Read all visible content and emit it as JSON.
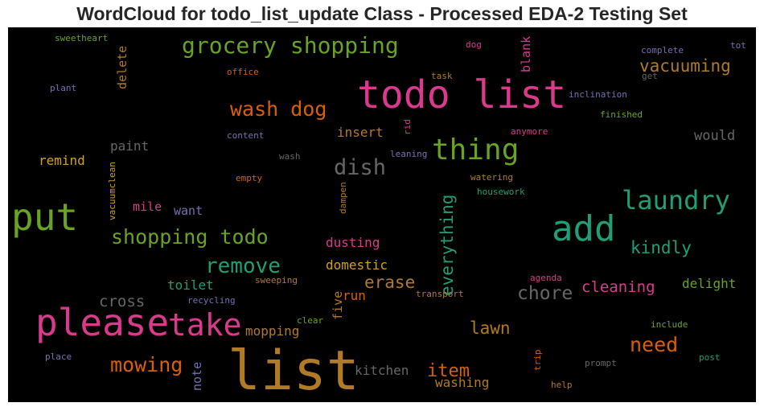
{
  "title": "WordCloud for todo_list_update Class - Processed EDA-2 Testing Set",
  "words": [
    {
      "text": "list",
      "color": "#b07a26"
    },
    {
      "text": "todo list",
      "color": "#d93a8c"
    },
    {
      "text": "please",
      "color": "#d93a8c"
    },
    {
      "text": "add",
      "color": "#1f9e77"
    },
    {
      "text": "put",
      "color": "#69a324"
    },
    {
      "text": "take",
      "color": "#d93a8c"
    },
    {
      "text": "thing",
      "color": "#69a324"
    },
    {
      "text": "laundry",
      "color": "#1f9e77"
    },
    {
      "text": "grocery shopping",
      "color": "#69a324"
    },
    {
      "text": "shopping todo",
      "color": "#69a324"
    },
    {
      "text": "remove",
      "color": "#1f9e77"
    },
    {
      "text": "wash dog",
      "color": "#d95f02"
    },
    {
      "text": "dish",
      "color": "#666666"
    },
    {
      "text": "mowing",
      "color": "#d95f02"
    },
    {
      "text": "need",
      "color": "#d95f02"
    },
    {
      "text": "vacuuming",
      "color": "#b07a26"
    },
    {
      "text": "chore",
      "color": "#666666"
    },
    {
      "text": "erase",
      "color": "#b07a26"
    },
    {
      "text": "item",
      "color": "#d95f02"
    },
    {
      "text": "everything",
      "color": "#1f9e77"
    },
    {
      "text": "lawn",
      "color": "#b07a26"
    },
    {
      "text": "kindly",
      "color": "#1f9e77"
    },
    {
      "text": "cleaning",
      "color": "#d93a8c"
    },
    {
      "text": "cross",
      "color": "#666666"
    },
    {
      "text": "paint",
      "color": "#666666"
    },
    {
      "text": "remind",
      "color": "#d4a017"
    },
    {
      "text": "insert",
      "color": "#b07a26"
    },
    {
      "text": "would",
      "color": "#666666"
    },
    {
      "text": "delight",
      "color": "#69a324"
    },
    {
      "text": "mopping",
      "color": "#b07a26"
    },
    {
      "text": "toilet",
      "color": "#1f9e77"
    },
    {
      "text": "domestic",
      "color": "#d4a017"
    },
    {
      "text": "dusting",
      "color": "#d93a8c"
    },
    {
      "text": "kitchen",
      "color": "#666666"
    },
    {
      "text": "washing",
      "color": "#b07a26"
    },
    {
      "text": "run",
      "color": "#d95f02"
    },
    {
      "text": "five",
      "color": "#b07a26"
    },
    {
      "text": "mile",
      "color": "#d93a8c"
    },
    {
      "text": "want",
      "color": "#7570b3"
    },
    {
      "text": "delete",
      "color": "#b07a26"
    },
    {
      "text": "note",
      "color": "#7570b3"
    },
    {
      "text": "blank",
      "color": "#d93a8c"
    },
    {
      "text": "sweetheart",
      "color": "#69a324"
    },
    {
      "text": "dog",
      "color": "#d93a8c"
    },
    {
      "text": "complete",
      "color": "#7570b3"
    },
    {
      "text": "tot",
      "color": "#7570b3"
    },
    {
      "text": "office",
      "color": "#d95f02"
    },
    {
      "text": "task",
      "color": "#b07a26"
    },
    {
      "text": "get",
      "color": "#666666"
    },
    {
      "text": "plant",
      "color": "#7570b3"
    },
    {
      "text": "inclination",
      "color": "#7570b3"
    },
    {
      "text": "finished",
      "color": "#69a324"
    },
    {
      "text": "content",
      "color": "#7570b3"
    },
    {
      "text": "rid",
      "color": "#d93a8c"
    },
    {
      "text": "anymore",
      "color": "#d93a8c"
    },
    {
      "text": "wash",
      "color": "#666666"
    },
    {
      "text": "leaning",
      "color": "#7570b3"
    },
    {
      "text": "empty",
      "color": "#d95f02"
    },
    {
      "text": "watering",
      "color": "#b07a26"
    },
    {
      "text": "housework",
      "color": "#1f9e77"
    },
    {
      "text": "vacuumclean",
      "color": "#d4a017"
    },
    {
      "text": "dampen",
      "color": "#b07a26"
    },
    {
      "text": "agenda",
      "color": "#d93a8c"
    },
    {
      "text": "sweeping",
      "color": "#b07a26"
    },
    {
      "text": "transport",
      "color": "#b07a26"
    },
    {
      "text": "recycling",
      "color": "#7570b3"
    },
    {
      "text": "clear",
      "color": "#69a324"
    },
    {
      "text": "include",
      "color": "#69a324"
    },
    {
      "text": "place",
      "color": "#7570b3"
    },
    {
      "text": "trip",
      "color": "#d95f02"
    },
    {
      "text": "prompt",
      "color": "#666666"
    },
    {
      "text": "post",
      "color": "#1f9e77"
    },
    {
      "text": "help",
      "color": "#b07a26"
    }
  ]
}
